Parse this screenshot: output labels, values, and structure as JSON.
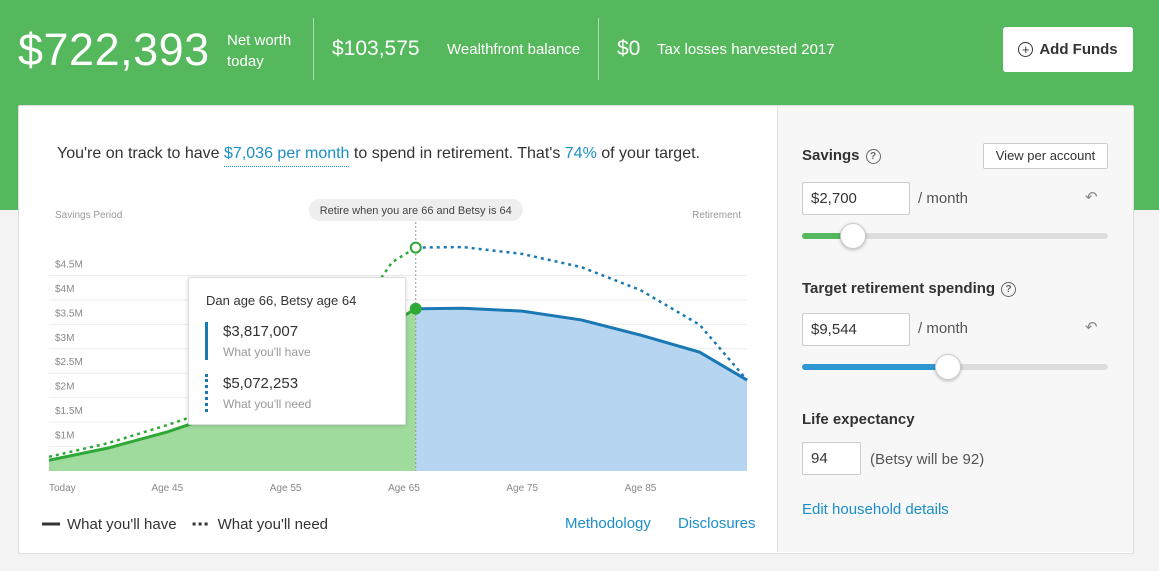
{
  "header": {
    "net_worth": "$722,393",
    "net_worth_label": "Net worth today",
    "balance": "$103,575",
    "balance_label": "Wealthfront balance",
    "tax_losses": "$0",
    "tax_losses_label": "Tax losses harvested 2017",
    "add_funds": "Add Funds"
  },
  "summary": {
    "lead": "You're on track to have",
    "monthly": "$7,036 per month",
    "middle": "to spend in retirement. That's",
    "percent": "74%",
    "tail": "of your target."
  },
  "chart_data": {
    "type": "area",
    "left_label": "Savings Period",
    "right_label": "Retirement",
    "retire_label": "Retire when you are 66 and Betsy is 64",
    "retirement_x": 66,
    "x": [
      35,
      40,
      45,
      50,
      55,
      60,
      64,
      66,
      70,
      75,
      80,
      85,
      90,
      94
    ],
    "xlim": [
      35,
      94
    ],
    "xticks": [
      {
        "value": 35,
        "label": "Today"
      },
      {
        "value": 45,
        "label": "Age 45"
      },
      {
        "value": 55,
        "label": "Age 55"
      },
      {
        "value": 65,
        "label": "Age 65"
      },
      {
        "value": 75,
        "label": "Age 75"
      },
      {
        "value": 85,
        "label": "Age 85"
      }
    ],
    "ylim": [
      500000,
      5000000
    ],
    "yticks": [
      {
        "value": 1000000,
        "label": "$1M"
      },
      {
        "value": 1500000,
        "label": "$1.5M"
      },
      {
        "value": 2000000,
        "label": "$2M"
      },
      {
        "value": 2500000,
        "label": "$2.5M"
      },
      {
        "value": 3000000,
        "label": "$3M"
      },
      {
        "value": 3500000,
        "label": "$3.5M"
      },
      {
        "value": 4000000,
        "label": "$4M"
      },
      {
        "value": 4500000,
        "label": "$4.5M"
      }
    ],
    "grid": true,
    "series": [
      {
        "name": "What you'll have",
        "style": "solid",
        "color": "#2ea836",
        "fill": "#9fdb9c",
        "retired_color": "#1a78b4",
        "retired_fill": "#b5d5f0",
        "values": [
          720000,
          970000,
          1300000,
          1710000,
          2260000,
          2970000,
          3530000,
          3820000,
          3830000,
          3770000,
          3590000,
          3280000,
          2930000,
          2360000
        ]
      },
      {
        "name": "What you'll need",
        "style": "dotted",
        "color": "#2ea836",
        "retired_color": "#1a78b4",
        "values": [
          790000,
          1070000,
          1440000,
          1850000,
          2260000,
          3380000,
          4770000,
          5070000,
          5080000,
          4940000,
          4670000,
          4200000,
          3490000,
          2360000
        ]
      }
    ],
    "tooltip": {
      "title": "Dan age 66, Betsy age 64",
      "have_value": "$3,817,007",
      "have_label": "What you'll have",
      "need_value": "$5,072,253",
      "need_label": "What you'll need"
    }
  },
  "links": {
    "methodology": "Methodology",
    "disclosures": "Disclosures"
  },
  "panel": {
    "savings_label": "Savings",
    "view_per_account": "View per account",
    "savings_value": "$2,700",
    "per_month": "/ month",
    "spending_label": "Target retirement spending",
    "spending_value": "$9,544",
    "life_label": "Life expectancy",
    "life_value": "94",
    "life_note": "(Betsy will be 92)",
    "edit_household": "Edit household details"
  }
}
